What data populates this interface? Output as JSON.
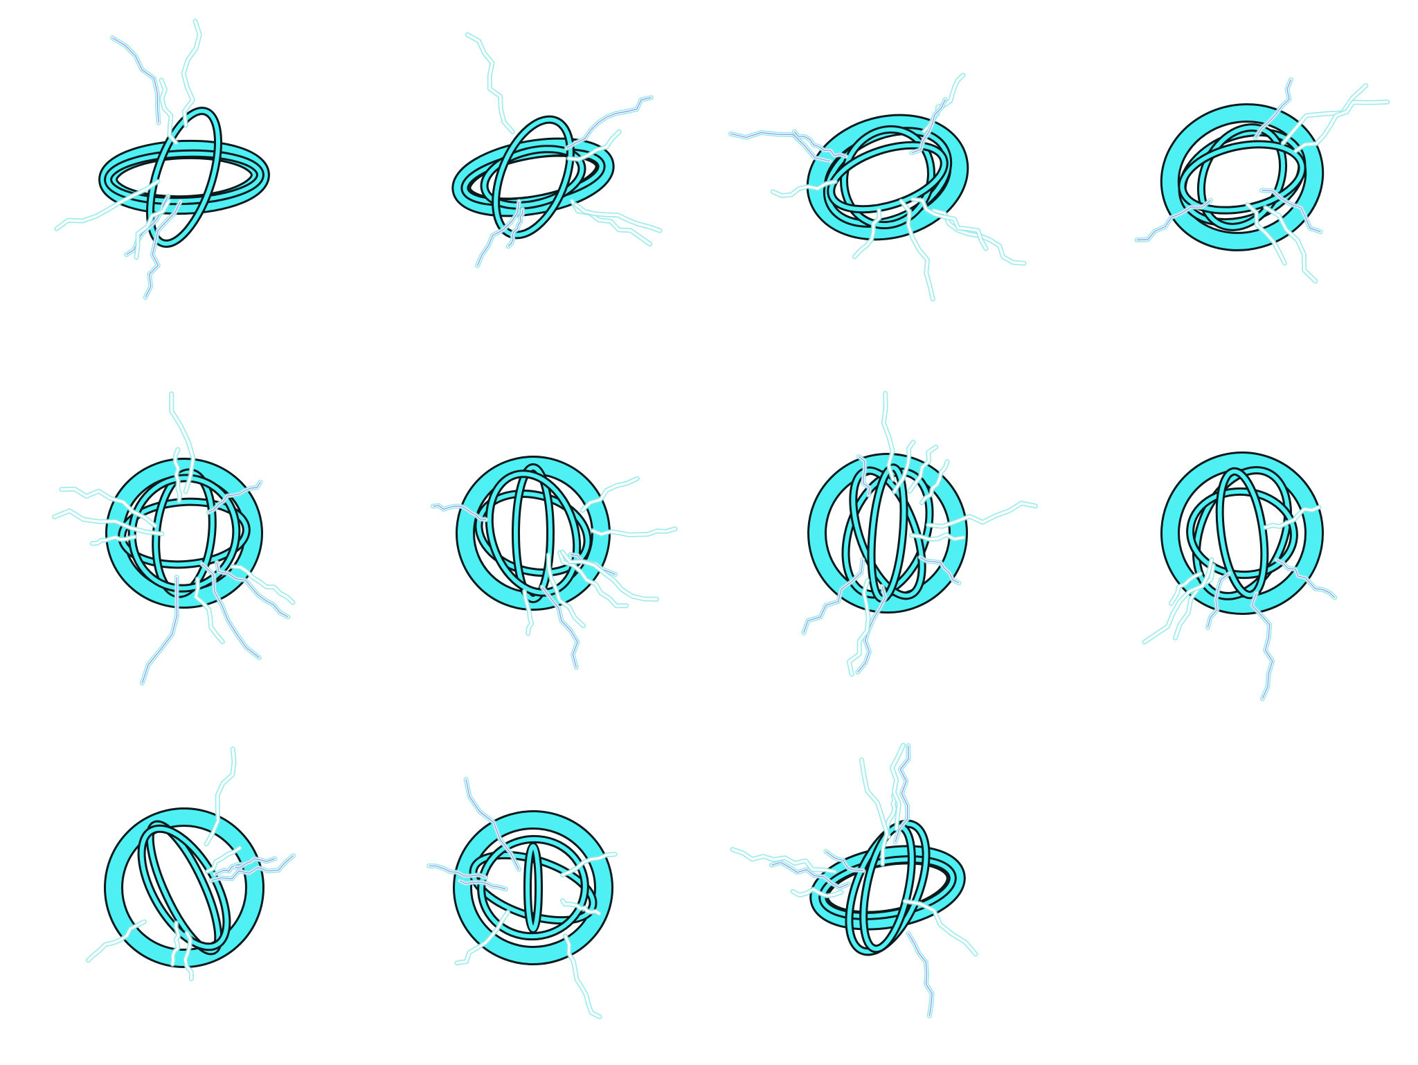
{
  "sprite_sheet": {
    "background": "#ffffff",
    "columns": 4,
    "rows": 3,
    "frame_count": 11,
    "palette": {
      "ring_fill": "#4ff0f3",
      "outline": "#0a1a1c",
      "lightning_core": "#ffffff",
      "lightning_glow": "#8fe8e8",
      "lightning_accent": "#4a5fe0"
    },
    "icon": "lightning-gyroscope-orb-icon"
  }
}
